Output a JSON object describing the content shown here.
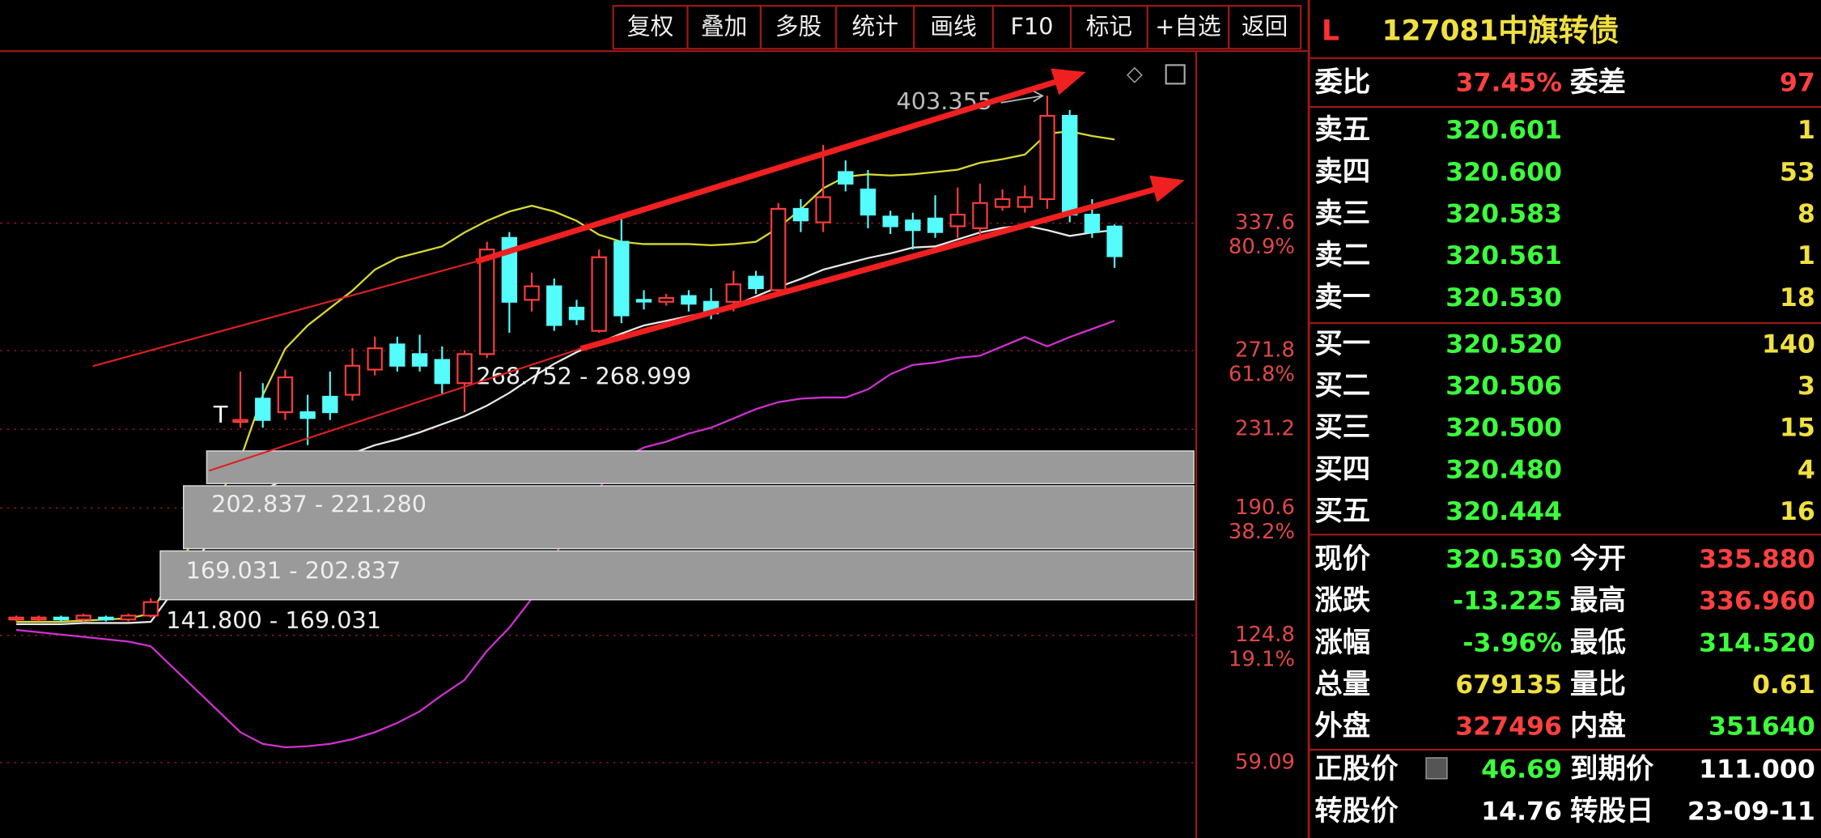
{
  "toolbar": [
    "复权",
    "叠加",
    "多股",
    "统计",
    "画线",
    "F10",
    "标记",
    "+自选",
    "返回"
  ],
  "chart_data": {
    "type": "candlestick",
    "x": [
      0,
      1,
      2,
      3,
      4,
      5,
      6,
      10,
      11,
      12,
      13,
      14,
      15,
      16,
      17,
      18,
      19,
      20,
      21,
      22,
      23,
      24,
      25,
      26,
      27,
      28,
      29,
      30,
      31,
      32,
      33,
      34,
      35,
      36,
      37,
      38,
      39,
      40,
      41,
      42,
      43,
      44,
      45,
      46,
      47,
      48,
      49
    ],
    "open": [
      133,
      133,
      134,
      133,
      134,
      133,
      135,
      235,
      247,
      240,
      240,
      248,
      249,
      262,
      275,
      270,
      267,
      255,
      270,
      330,
      298,
      305,
      294,
      282,
      328,
      298,
      297,
      300,
      297,
      297,
      310,
      303,
      345,
      338,
      364,
      355,
      341,
      339,
      340,
      336,
      335,
      346,
      346,
      350,
      393,
      342,
      335.88
    ],
    "high": [
      135,
      135,
      135,
      136,
      135,
      136,
      144,
      261,
      255,
      262,
      249,
      261,
      273,
      279,
      279,
      280,
      274,
      272,
      328,
      333,
      312,
      309,
      298,
      324,
      340,
      303,
      301,
      303,
      304,
      313,
      313,
      348,
      350,
      378,
      370,
      365,
      344,
      343,
      352,
      356,
      358,
      355,
      357,
      403.355,
      396,
      350,
      336.96
    ],
    "low": [
      132,
      132,
      132,
      132,
      132,
      132,
      134,
      232,
      232,
      236,
      223,
      236,
      246,
      259,
      261,
      261,
      249,
      240,
      268,
      281,
      292,
      282,
      285,
      281,
      286,
      293,
      295,
      292,
      288,
      292,
      301,
      301,
      333,
      333,
      354,
      335,
      332,
      324,
      330,
      330,
      331,
      344,
      343,
      345,
      338,
      330,
      314.52
    ],
    "close": [
      134,
      134,
      133,
      135,
      133,
      135,
      142,
      236,
      236,
      258,
      237,
      240,
      264,
      273,
      264,
      264,
      255,
      270,
      324,
      297,
      305,
      285,
      288,
      320,
      290,
      298,
      299,
      296,
      291,
      306,
      304,
      345,
      339,
      351,
      358,
      342,
      336,
      334,
      333,
      342,
      348,
      350,
      351,
      393,
      342,
      333,
      320.53
    ],
    "lines": [
      {
        "color": "#d8d830",
        "values": [
          131.8,
          131.8,
          131.8,
          132.4,
          133,
          133.6,
          136,
          215.8,
          248.8,
          272.8,
          284.8,
          293.8,
          302.8,
          313.6,
          319.6,
          322.6,
          325.6,
          332.8,
          338.8,
          343.6,
          346.6,
          343.6,
          338.8,
          331.6,
          328,
          326.8,
          326.8,
          326.8,
          326.2,
          326.8,
          328,
          335.2,
          344.8,
          355.6,
          361.6,
          362.8,
          362.2,
          362.8,
          364,
          365.2,
          368.8,
          370.6,
          373,
          383.8,
          385,
          382.6,
          380.8
        ]
      },
      {
        "color": "#e8e8e8",
        "values": [
          130.6,
          130.6,
          130.6,
          131.2,
          131.2,
          131.2,
          131.8,
          194.8,
          199.6,
          205.6,
          209.8,
          214,
          218.8,
          223,
          226,
          229.6,
          233.8,
          238,
          243.4,
          250,
          257.8,
          265,
          271,
          275.8,
          280.6,
          284.8,
          287.2,
          289.6,
          292,
          295,
          299.8,
          304.6,
          308.8,
          313.6,
          316.6,
          319.6,
          322,
          325,
          325.6,
          329.2,
          332.8,
          335.2,
          336.4,
          334,
          331,
          332.8,
          334
        ]
      },
      {
        "color": "#d030d0",
        "values": [
          127.6,
          126.4,
          125.2,
          124,
          122.8,
          121.6,
          119.2,
          74.8,
          68.8,
          67,
          67.6,
          68.8,
          71.2,
          74.8,
          79.6,
          85.6,
          94,
          101.8,
          116.8,
          128.8,
          143.8,
          166,
          182.8,
          200.8,
          215.8,
          221.8,
          224.8,
          229,
          232,
          236.8,
          241.6,
          245.2,
          247,
          247.6,
          247.6,
          251.8,
          259.6,
          264.4,
          265.6,
          268,
          269.2,
          274,
          278.8,
          274,
          278.8,
          283,
          287.2
        ]
      }
    ],
    "up_color": "#ff3c3c",
    "down_color": "#54fcfc",
    "ylim": [
      20.2,
      425.8
    ],
    "yticks": [
      337.6,
      271.8,
      231.2,
      190.6,
      124.8,
      59.09
    ],
    "fib_levels": [
      80.9,
      61.8,
      38.2,
      19.1
    ],
    "fib_labels": [
      "80.9%",
      "61.8%",
      "38.2%",
      "19.1%"
    ],
    "range_labels": [
      "268.752 - 268.999",
      "202.837 - 221.280",
      "169.031 - 202.837",
      "141.800 - 169.031"
    ],
    "marker": "T"
  },
  "quote": {
    "flag": "L",
    "code": "127081",
    "name": "中旗转债",
    "ratio_label": "委比",
    "ratio": "37.45%",
    "diff_label": "委差",
    "diff": "97",
    "asks": [
      {
        "label": "卖五",
        "price": "320.601",
        "volume": "1"
      },
      {
        "label": "卖四",
        "price": "320.600",
        "volume": "53"
      },
      {
        "label": "卖三",
        "price": "320.583",
        "volume": "8"
      },
      {
        "label": "卖二",
        "price": "320.561",
        "volume": "1"
      },
      {
        "label": "卖一",
        "price": "320.530",
        "volume": "18"
      }
    ],
    "bids": [
      {
        "label": "买一",
        "price": "320.520",
        "volume": "140"
      },
      {
        "label": "买二",
        "price": "320.506",
        "volume": "3"
      },
      {
        "label": "买三",
        "price": "320.500",
        "volume": "15"
      },
      {
        "label": "买四",
        "price": "320.480",
        "volume": "4"
      },
      {
        "label": "买五",
        "price": "320.444",
        "volume": "16"
      }
    ],
    "stats": [
      {
        "label": "现价",
        "value": "320.530",
        "color": "#3cff3c"
      },
      {
        "label": "今开",
        "value": "335.880",
        "color": "#ff4040"
      },
      {
        "label": "涨跌",
        "value": "-13.225",
        "color": "#3cff3c"
      },
      {
        "label": "最高",
        "value": "336.960",
        "color": "#ff4040"
      },
      {
        "label": "涨幅",
        "value": "-3.96%",
        "color": "#3cff3c"
      },
      {
        "label": "最低",
        "value": "314.520",
        "color": "#3cff3c"
      },
      {
        "label": "总量",
        "value": "679135",
        "color": "#f0e040"
      },
      {
        "label": "量比",
        "value": "0.61",
        "color": "#f0e040"
      },
      {
        "label": "外盘",
        "value": "327496",
        "color": "#ff4040"
      },
      {
        "label": "内盘",
        "value": "351640",
        "color": "#3cff3c"
      },
      {
        "label": "正股价",
        "value": "46.69",
        "color": "#3cff3c"
      },
      {
        "label": "到期价",
        "value": "111.000",
        "color": "#ffffff"
      },
      {
        "label": "转股价",
        "value": "14.76",
        "color": "#ffffff"
      },
      {
        "label": "转股日",
        "value": "23-09-11",
        "color": "#ffffff"
      }
    ]
  }
}
